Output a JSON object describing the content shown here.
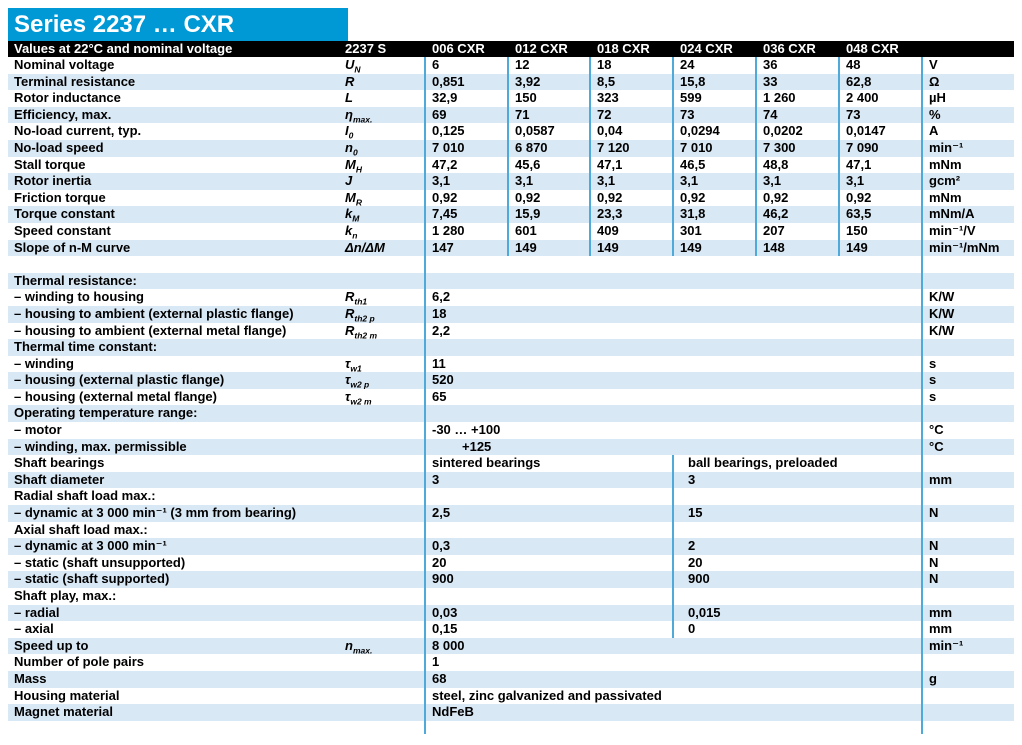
{
  "title": "Series 2237 … CXR",
  "colors": {
    "title_bg": "#0098d5",
    "header_bg": "#000000",
    "row_alt": "#d9e8f5",
    "divider": "#4fa9d9"
  },
  "header": {
    "condition": "Values at 22°C and nominal voltage",
    "series": "2237 S",
    "columns": [
      "006 CXR",
      "012 CXR",
      "018 CXR",
      "024 CXR",
      "036 CXR",
      "048 CXR"
    ]
  },
  "rows": [
    {
      "label": "Nominal voltage",
      "sym": "U",
      "sub": "N",
      "v": [
        "6",
        "12",
        "18",
        "24",
        "36",
        "48"
      ],
      "unit": "V"
    },
    {
      "label": "Terminal resistance",
      "sym": "R",
      "sub": "",
      "v": [
        "0,851",
        "3,92",
        "8,5",
        "15,8",
        "33",
        "62,8"
      ],
      "unit": "Ω"
    },
    {
      "label": "Rotor inductance",
      "sym": "L",
      "sub": "",
      "v": [
        "32,9",
        "150",
        "323",
        "599",
        "1 260",
        "2 400"
      ],
      "unit": "µH"
    },
    {
      "label": "Efficiency, max.",
      "sym": "η",
      "sub": "max.",
      "v": [
        "69",
        "71",
        "72",
        "73",
        "74",
        "73"
      ],
      "unit": "%"
    },
    {
      "label": "No-load current, typ.",
      "sym": "I",
      "sub": "0",
      "v": [
        "0,125",
        "0,0587",
        "0,04",
        "0,0294",
        "0,0202",
        "0,0147"
      ],
      "unit": "A"
    },
    {
      "label": "No-load speed",
      "sym": "n",
      "sub": "0",
      "v": [
        "7 010",
        "6 870",
        "7 120",
        "7 010",
        "7 300",
        "7 090"
      ],
      "unit": "min⁻¹"
    },
    {
      "label": "Stall torque",
      "sym": "M",
      "sub": "H",
      "v": [
        "47,2",
        "45,6",
        "47,1",
        "46,5",
        "48,8",
        "47,1"
      ],
      "unit": "mNm"
    },
    {
      "label": "Rotor inertia",
      "sym": "J",
      "sub": "",
      "v": [
        "3,1",
        "3,1",
        "3,1",
        "3,1",
        "3,1",
        "3,1"
      ],
      "unit": "gcm²"
    },
    {
      "label": "Friction torque",
      "sym": "M",
      "sub": "R",
      "v": [
        "0,92",
        "0,92",
        "0,92",
        "0,92",
        "0,92",
        "0,92"
      ],
      "unit": "mNm"
    },
    {
      "label": "Torque constant",
      "sym": "k",
      "sub": "M",
      "v": [
        "7,45",
        "15,9",
        "23,3",
        "31,8",
        "46,2",
        "63,5"
      ],
      "unit": "mNm/A"
    },
    {
      "label": "Speed constant",
      "sym": "k",
      "sub": "n",
      "v": [
        "1 280",
        "601",
        "409",
        "301",
        "207",
        "150"
      ],
      "unit": "min⁻¹/V"
    },
    {
      "label": "Slope of n-M curve",
      "sym": "Δn/ΔM",
      "sub": "",
      "v": [
        "147",
        "149",
        "149",
        "149",
        "148",
        "149"
      ],
      "unit": "min⁻¹/mNm"
    },
    {
      "label": ""
    },
    {
      "label": "Thermal resistance:"
    },
    {
      "label": "– winding to housing",
      "sym": "R",
      "sub": "th1",
      "val": "6,2",
      "unit": "K/W"
    },
    {
      "label": "– housing to ambient (external plastic flange)",
      "sym": "R",
      "sub": "th2 p",
      "val": "18",
      "unit": "K/W"
    },
    {
      "label": "– housing to ambient (external metal flange)",
      "sym": "R",
      "sub": "th2 m",
      "val": "2,2",
      "unit": "K/W"
    },
    {
      "label": "Thermal time constant:"
    },
    {
      "label": "– winding",
      "sym": "τ",
      "sub": "w1",
      "val": "11",
      "unit": "s"
    },
    {
      "label": "– housing (external plastic flange)",
      "sym": "τ",
      "sub": "w2 p",
      "val": "520",
      "unit": "s"
    },
    {
      "label": "– housing (external metal flange)",
      "sym": "τ",
      "sub": "w2 m",
      "val": "65",
      "unit": "s"
    },
    {
      "label": "Operating temperature range:"
    },
    {
      "label": "– motor",
      "val": "-30 … +100",
      "unit": "°C"
    },
    {
      "label": "– winding, max. permissible",
      "val": "+125",
      "unit": "°C"
    },
    {
      "label": "Shaft bearings",
      "valL": "sintered bearings",
      "valR": "ball bearings, preloaded",
      "unit": ""
    },
    {
      "label": "Shaft diameter",
      "valL": "3",
      "valR": "3",
      "unit": "mm"
    },
    {
      "label": "Radial shaft load max.:"
    },
    {
      "label": "– dynamic at 3 000 min⁻¹ (3 mm from bearing)",
      "valL": "2,5",
      "valR": "15",
      "unit": "N"
    },
    {
      "label": "Axial shaft load max.:"
    },
    {
      "label": "– dynamic at 3 000 min⁻¹",
      "valL": "0,3",
      "valR": "2",
      "unit": "N"
    },
    {
      "label": "– static (shaft unsupported)",
      "valL": "20",
      "valR": "20",
      "unit": "N"
    },
    {
      "label": "– static (shaft supported)",
      "valL": "900",
      "valR": "900",
      "unit": "N"
    },
    {
      "label": "Shaft play, max.:"
    },
    {
      "label": "– radial",
      "valL": "0,03",
      "valR": "0,015",
      "unit": "mm"
    },
    {
      "label": "– axial",
      "valL": "0,15",
      "valR": "0",
      "unit": "mm"
    },
    {
      "label": "Speed up to",
      "sym": "n",
      "sub": "max.",
      "val": "8 000",
      "unit": "min⁻¹"
    },
    {
      "label": "Number of pole pairs",
      "val": "1",
      "unit": ""
    },
    {
      "label": "Mass",
      "val": "68",
      "unit": "g"
    },
    {
      "label": "Housing material",
      "val": "steel, zinc galvanized and passivated",
      "unit": ""
    },
    {
      "label": "Magnet material",
      "val": "NdFeB",
      "unit": ""
    }
  ]
}
